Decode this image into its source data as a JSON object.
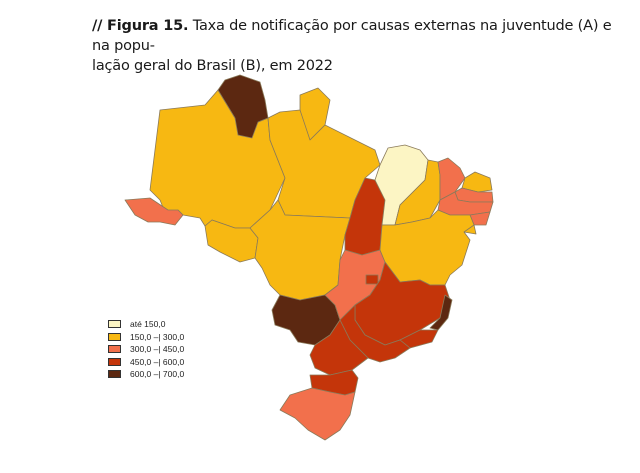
{
  "caption": {
    "prefix": "// Figura 15.",
    "line1": " Taxa de notificação por causas externas na juventude (A) e na popu-",
    "line2": "lação geral do Brasil (B), em 2022"
  },
  "colors": {
    "c1": "#fcf5c4",
    "c2": "#f7b812",
    "c3": "#f2704c",
    "c4": "#c4350a",
    "c5": "#5c2811",
    "border": "#8a7a5a"
  },
  "legend": [
    {
      "label": "até 150,0",
      "class": "c1"
    },
    {
      "label": "150,0 –| 300,0",
      "class": "c2"
    },
    {
      "label": "300,0 –| 450,0",
      "class": "c3"
    },
    {
      "label": "450,0 –| 600,0",
      "class": "c4"
    },
    {
      "label": "600,0 –| 700,0",
      "class": "c5"
    }
  ],
  "regions": [
    {
      "id": "AC",
      "class": "c3"
    },
    {
      "id": "AM",
      "class": "c2"
    },
    {
      "id": "RR",
      "class": "c5"
    },
    {
      "id": "PA",
      "class": "c2"
    },
    {
      "id": "AP",
      "class": "c2"
    },
    {
      "id": "RO",
      "class": "c2"
    },
    {
      "id": "MT",
      "class": "c2"
    },
    {
      "id": "TO",
      "class": "c4"
    },
    {
      "id": "MA",
      "class": "c1"
    },
    {
      "id": "PI",
      "class": "c2"
    },
    {
      "id": "CE",
      "class": "c3"
    },
    {
      "id": "RN",
      "class": "c2"
    },
    {
      "id": "PB",
      "class": "c3"
    },
    {
      "id": "PE",
      "class": "c3"
    },
    {
      "id": "AL",
      "class": "c3"
    },
    {
      "id": "SE",
      "class": "c2"
    },
    {
      "id": "BA",
      "class": "c2"
    },
    {
      "id": "GO",
      "class": "c3"
    },
    {
      "id": "DF",
      "class": "c4"
    },
    {
      "id": "MS",
      "class": "c5"
    },
    {
      "id": "MG",
      "class": "c4"
    },
    {
      "id": "ES",
      "class": "c5"
    },
    {
      "id": "RJ",
      "class": "c4"
    },
    {
      "id": "SP",
      "class": "c4"
    },
    {
      "id": "PR",
      "class": "c4"
    },
    {
      "id": "SC",
      "class": "c4"
    },
    {
      "id": "RS",
      "class": "c3"
    }
  ]
}
